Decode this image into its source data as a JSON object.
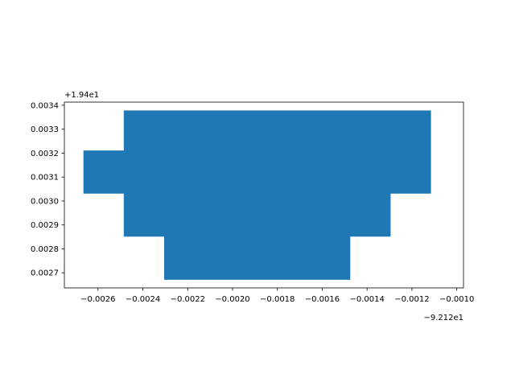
{
  "chart_data": {
    "type": "area",
    "title": "",
    "xlabel": "",
    "ylabel": "",
    "grid": false,
    "x_offset_label": "−9.212e1",
    "y_offset_label": "+1.94e1",
    "xlim": [
      -0.00275,
      -0.00097
    ],
    "ylim": [
      0.002637,
      0.003413
    ],
    "x_ticks": [
      -0.0026,
      -0.0024,
      -0.0022,
      -0.002,
      -0.0018,
      -0.0016,
      -0.0014,
      -0.0012,
      -0.001
    ],
    "x_tick_labels": [
      "−0.0026",
      "−0.0024",
      "−0.0022",
      "−0.0020",
      "−0.0018",
      "−0.0016",
      "−0.0014",
      "−0.0012",
      "−0.0010"
    ],
    "y_ticks": [
      0.0027,
      0.0028,
      0.0029,
      0.003,
      0.0031,
      0.0032,
      0.0033,
      0.0034
    ],
    "y_tick_labels": [
      "0.0027",
      "0.0028",
      "0.0029",
      "0.0030",
      "0.0031",
      "0.0032",
      "0.0033",
      "0.0034"
    ],
    "polygon": {
      "color": "#1f77b4",
      "x": [
        -0.002485,
        -0.001115,
        -0.001115,
        -0.001295,
        -0.001295,
        -0.001475,
        -0.001475,
        -0.002305,
        -0.002305,
        -0.002485,
        -0.002485,
        -0.002665,
        -0.002665,
        -0.002485
      ],
      "y": [
        0.003378,
        0.003378,
        0.003031,
        0.003031,
        0.002851,
        0.002851,
        0.002671,
        0.002671,
        0.002851,
        0.002851,
        0.003031,
        0.003031,
        0.003211,
        0.003211
      ]
    }
  }
}
